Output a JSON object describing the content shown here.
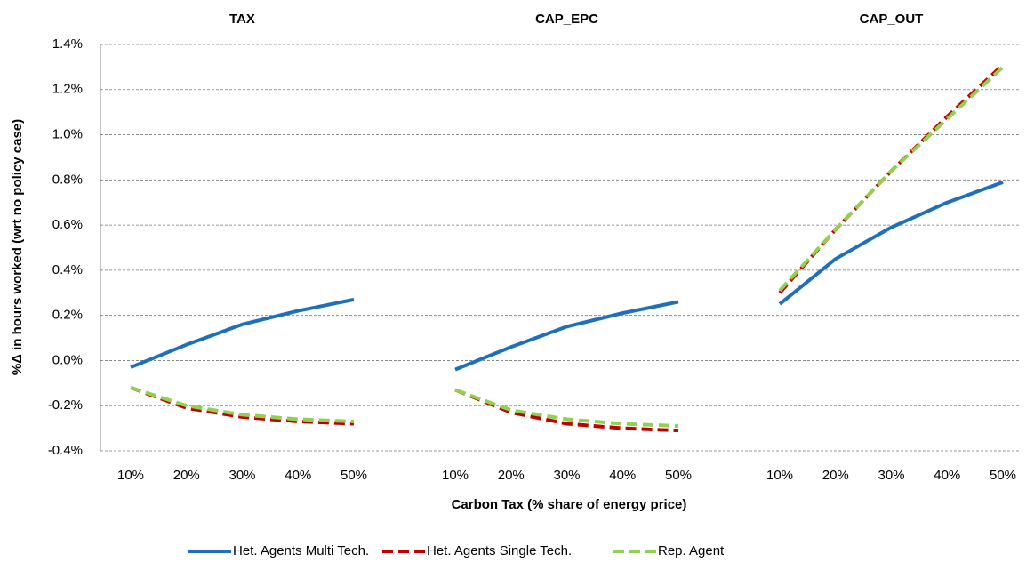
{
  "chart_data": {
    "type": "line",
    "ylabel": "%Δ in hours  worked  (wrt no policy case)",
    "xlabel": "Carbon Tax (% share of energy price)",
    "groups": [
      "TAX",
      "CAP_EPC",
      "CAP_OUT"
    ],
    "categories": [
      "10%",
      "20%",
      "30%",
      "40%",
      "50%"
    ],
    "ylim": [
      -0.4,
      1.4
    ],
    "yticks": [
      {
        "value": -0.4,
        "label": "-0.4%"
      },
      {
        "value": -0.2,
        "label": "-0.2%"
      },
      {
        "value": 0,
        "label": "0.0%"
      },
      {
        "value": 0.2,
        "label": "0.2%"
      },
      {
        "value": 0.4,
        "label": "0.4%"
      },
      {
        "value": 0.6,
        "label": "0.6%"
      },
      {
        "value": 0.8,
        "label": "0.8%"
      },
      {
        "value": 1.0,
        "label": "1.0%"
      },
      {
        "value": 1.2,
        "label": "1.2%"
      },
      {
        "value": 1.4,
        "label": "1.4%"
      }
    ],
    "grid": true,
    "series": [
      {
        "name": "Het. Agents Multi Tech.",
        "color": "#1f6fbf",
        "dashed": false,
        "values": [
          [
            -0.03,
            0.07,
            0.16,
            0.22,
            0.27
          ],
          [
            -0.04,
            0.06,
            0.15,
            0.21,
            0.26
          ],
          [
            0.25,
            0.45,
            0.59,
            0.7,
            0.79
          ]
        ]
      },
      {
        "name": "Het. Agents Single Tech.",
        "color": "#c00000",
        "dashed": true,
        "values": [
          [
            -0.12,
            -0.21,
            -0.25,
            -0.27,
            -0.28
          ],
          [
            -0.13,
            -0.23,
            -0.28,
            -0.3,
            -0.31
          ],
          [
            0.3,
            0.58,
            0.84,
            1.08,
            1.31
          ]
        ]
      },
      {
        "name": "Rep. Agent",
        "color": "#92d050",
        "dashed": true,
        "values": [
          [
            -0.12,
            -0.2,
            -0.24,
            -0.26,
            -0.27
          ],
          [
            -0.13,
            -0.22,
            -0.26,
            -0.28,
            -0.29
          ],
          [
            0.31,
            0.58,
            0.84,
            1.07,
            1.3
          ]
        ]
      }
    ]
  }
}
